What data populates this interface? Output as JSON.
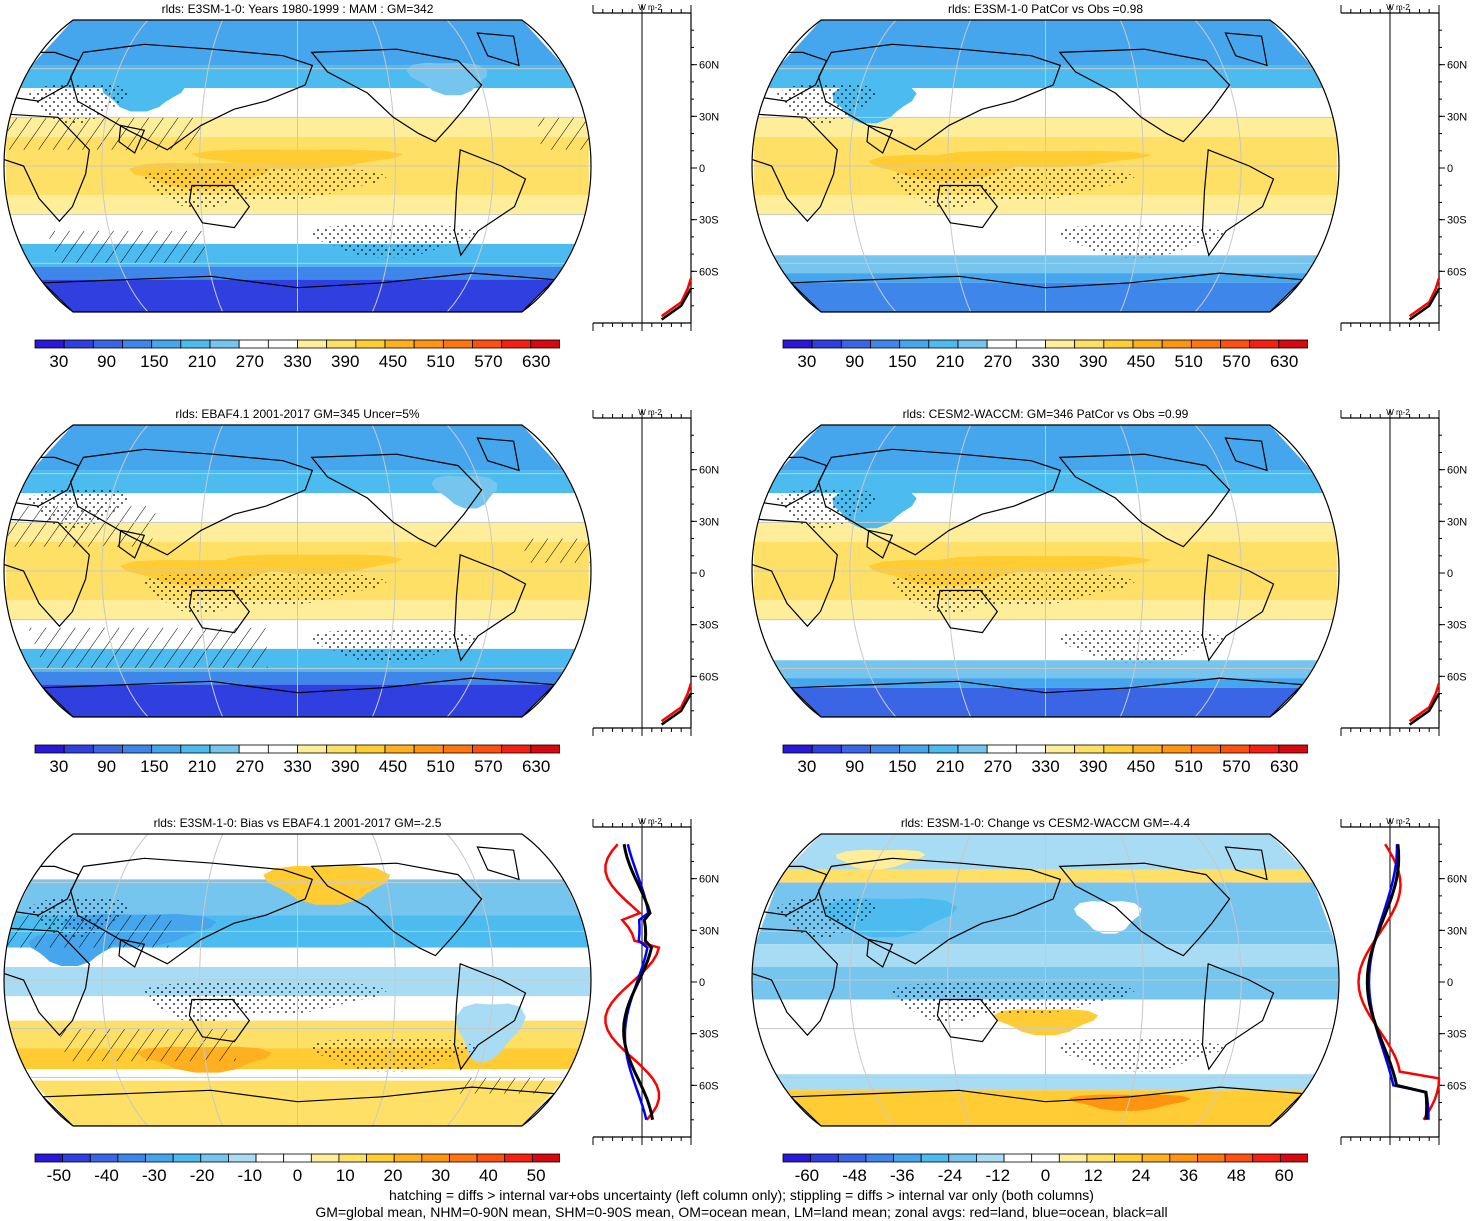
{
  "panels": [
    {
      "title": "rlds: E3SM-1-0: Years 1980-1999 : MAM : GM=342",
      "kind": "abs",
      "colorbar": {
        "labels": [
          "30",
          "90",
          "150",
          "210",
          "270",
          "330",
          "390",
          "450",
          "510",
          "570",
          "630"
        ]
      },
      "zonal_axis": {
        "ticks": [
          "-150",
          "-50",
          "50",
          "150"
        ],
        "xmin": -150,
        "xmax": 150,
        "vline": 0
      },
      "lat_labels": [
        "60N",
        "30N",
        "0",
        "30S",
        "60S"
      ],
      "units": "W m-2"
    },
    {
      "title": "rlds: E3SM-1-0 PatCor vs Obs =0.98",
      "kind": "abs",
      "colorbar": {
        "labels": [
          "30",
          "90",
          "150",
          "210",
          "270",
          "330",
          "390",
          "450",
          "510",
          "570",
          "630"
        ]
      },
      "zonal_axis": {
        "ticks": [
          "-150",
          "-50",
          "50",
          "150"
        ],
        "xmin": -150,
        "xmax": 150,
        "vline": 0
      },
      "lat_labels": [
        "60N",
        "30N",
        "0",
        "30S",
        "60S"
      ],
      "units": "W m-2"
    },
    {
      "title": "rlds: EBAF4.1 2001-2017 GM=345 Uncer=5%",
      "kind": "abs",
      "colorbar": {
        "labels": [
          "30",
          "90",
          "150",
          "210",
          "270",
          "330",
          "390",
          "450",
          "510",
          "570",
          "630"
        ]
      },
      "zonal_axis": {
        "ticks": [
          "-150",
          "-50",
          "50",
          "150"
        ],
        "xmin": -150,
        "xmax": 150,
        "vline": 0
      },
      "lat_labels": [
        "60N",
        "30N",
        "0",
        "30S",
        "60S"
      ],
      "units": "W m-2"
    },
    {
      "title": "rlds: CESM2-WACCM: GM=346 PatCor vs Obs =0.99",
      "kind": "abs",
      "colorbar": {
        "labels": [
          "30",
          "90",
          "150",
          "210",
          "270",
          "330",
          "390",
          "450",
          "510",
          "570",
          "630"
        ]
      },
      "zonal_axis": {
        "ticks": [
          "-150",
          "-50",
          "50",
          "150"
        ],
        "xmin": -150,
        "xmax": 150,
        "vline": 0
      },
      "lat_labels": [
        "60N",
        "30N",
        "0",
        "30S",
        "60S"
      ],
      "units": "W m-2"
    },
    {
      "title": "rlds: E3SM-1-0: Bias vs EBAF4.1 2001-2017 GM=-2.5",
      "kind": "diff",
      "colorbar": {
        "labels": [
          "-50",
          "-40",
          "-30",
          "-20",
          "-10",
          "0",
          "10",
          "20",
          "30",
          "40",
          "50"
        ]
      },
      "zonal_axis": {
        "ticks": [
          "-40",
          "0",
          "40"
        ],
        "xmin": -40,
        "xmax": 40,
        "vline": 0
      },
      "lat_labels": [
        "60N",
        "30N",
        "0",
        "30S",
        "60S"
      ],
      "units": "W m-2"
    },
    {
      "title": "rlds: E3SM-1-0: Change vs CESM2-WACCM GM=-4.4",
      "kind": "diff",
      "colorbar": {
        "labels": [
          "-60",
          "-48",
          "-36",
          "-24",
          "-12",
          "0",
          "12",
          "24",
          "36",
          "48",
          "60"
        ]
      },
      "zonal_axis": {
        "ticks": [
          "-20",
          "0",
          "20"
        ],
        "xmin": -28,
        "xmax": 28,
        "vline": 0
      },
      "lat_labels": [
        "60N",
        "30N",
        "0",
        "30S",
        "60S"
      ],
      "units": "W m-2"
    }
  ],
  "footer": {
    "line1": "hatching = diffs > internal var+obs uncertainty (left column only); stippling = diffs > internal var only (both columns)",
    "line2": "GM=global mean, NHM=0-90N mean, SHM=0-90S mean, OM=ocean mean, LM=land mean; zonal avgs: red=land, blue=ocean, black=all"
  },
  "chart_data": [
    {
      "type": "heatmap",
      "title": "rlds: E3SM-1-0: Years 1980-1999 : MAM : GM=342",
      "colorbar_range": [
        30,
        630
      ]
    },
    {
      "type": "heatmap",
      "title": "rlds: E3SM-1-0 PatCor vs Obs =0.98",
      "colorbar_range": [
        30,
        630
      ]
    },
    {
      "type": "heatmap",
      "title": "rlds: EBAF4.1 2001-2017 GM=345 Uncer=5%",
      "colorbar_range": [
        30,
        630
      ]
    },
    {
      "type": "heatmap",
      "title": "rlds: CESM2-WACCM: GM=346 PatCor vs Obs =0.99",
      "colorbar_range": [
        30,
        630
      ]
    },
    {
      "type": "heatmap",
      "title": "rlds: E3SM-1-0: Bias vs EBAF4.1 2001-2017 GM=-2.5",
      "colorbar_range": [
        -50,
        50
      ]
    },
    {
      "type": "heatmap",
      "title": "rlds: E3SM-1-0: Change vs CESM2-WACCM GM=-4.4",
      "colorbar_range": [
        -60,
        60
      ]
    }
  ],
  "colors": {
    "abs": [
      "#2a18d8",
      "#2f3fe0",
      "#3a66e6",
      "#3f86ea",
      "#45a6ee",
      "#4cbcf0",
      "#75c5ee",
      "#ffffff",
      "#ffffff",
      "#ffee99",
      "#ffe066",
      "#ffcc33",
      "#ffb020",
      "#ff9410",
      "#ff7610",
      "#ff5010",
      "#f52010",
      "#d80810"
    ],
    "diff": [
      "#2a18d8",
      "#2f3fe0",
      "#3a66e6",
      "#3f86ea",
      "#45a6ee",
      "#4cbcf0",
      "#75c5ee",
      "#a8dcf4",
      "#ffffff",
      "#ffffff",
      "#ffee99",
      "#ffe066",
      "#ffcc33",
      "#ffb020",
      "#ff9410",
      "#ff7610",
      "#ff5010",
      "#f52010",
      "#d80810"
    ],
    "land": "#ff0000",
    "ocean": "#0000ff",
    "all": "#000000"
  }
}
